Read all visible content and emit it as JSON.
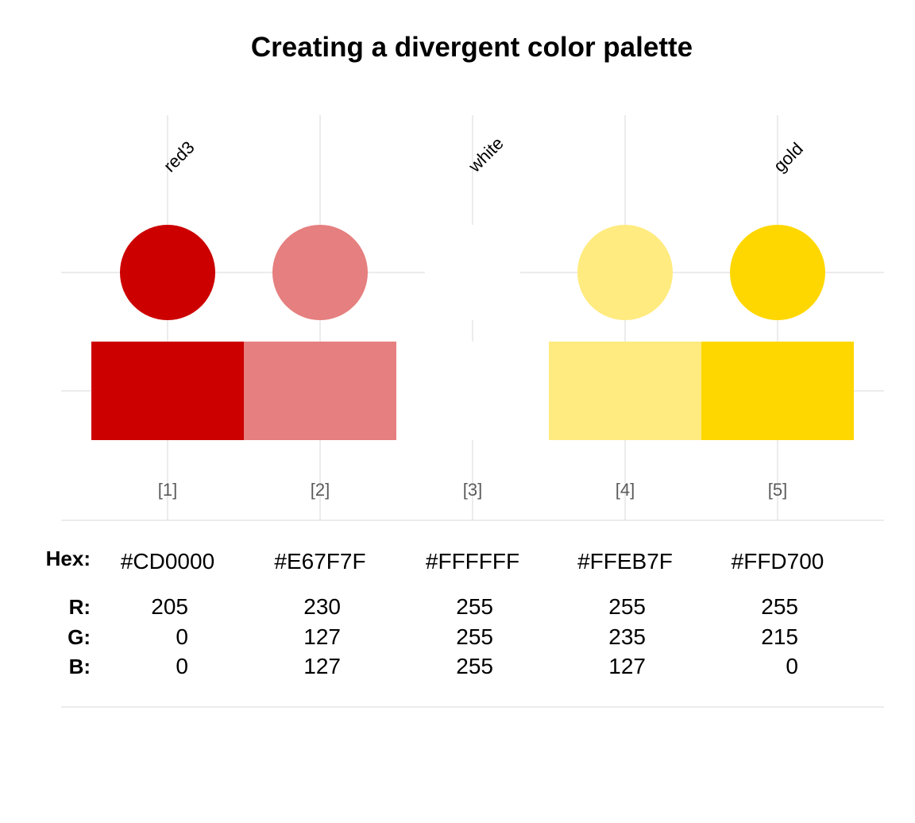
{
  "chart_data": {
    "type": "table",
    "title": "Creating a divergent color palette",
    "anchor_labels": [
      {
        "index": 1,
        "name": "red3"
      },
      {
        "index": 3,
        "name": "white"
      },
      {
        "index": 5,
        "name": "gold"
      }
    ],
    "index_labels": [
      "[1]",
      "[2]",
      "[3]",
      "[4]",
      "[5]"
    ],
    "colors": [
      "#CD0000",
      "#E67F7F",
      "#FFFFFF",
      "#FFEB7F",
      "#FFD700"
    ],
    "row_headers": {
      "hex": "Hex:",
      "r": "R:",
      "g": "G:",
      "b": "B:"
    },
    "hex": [
      "#CD0000",
      "#E67F7F",
      "#FFFFFF",
      "#FFEB7F",
      "#FFD700"
    ],
    "R": [
      205,
      230,
      255,
      255,
      255
    ],
    "G": [
      0,
      127,
      255,
      235,
      215
    ],
    "B": [
      0,
      127,
      255,
      127,
      0
    ],
    "grid": true
  }
}
